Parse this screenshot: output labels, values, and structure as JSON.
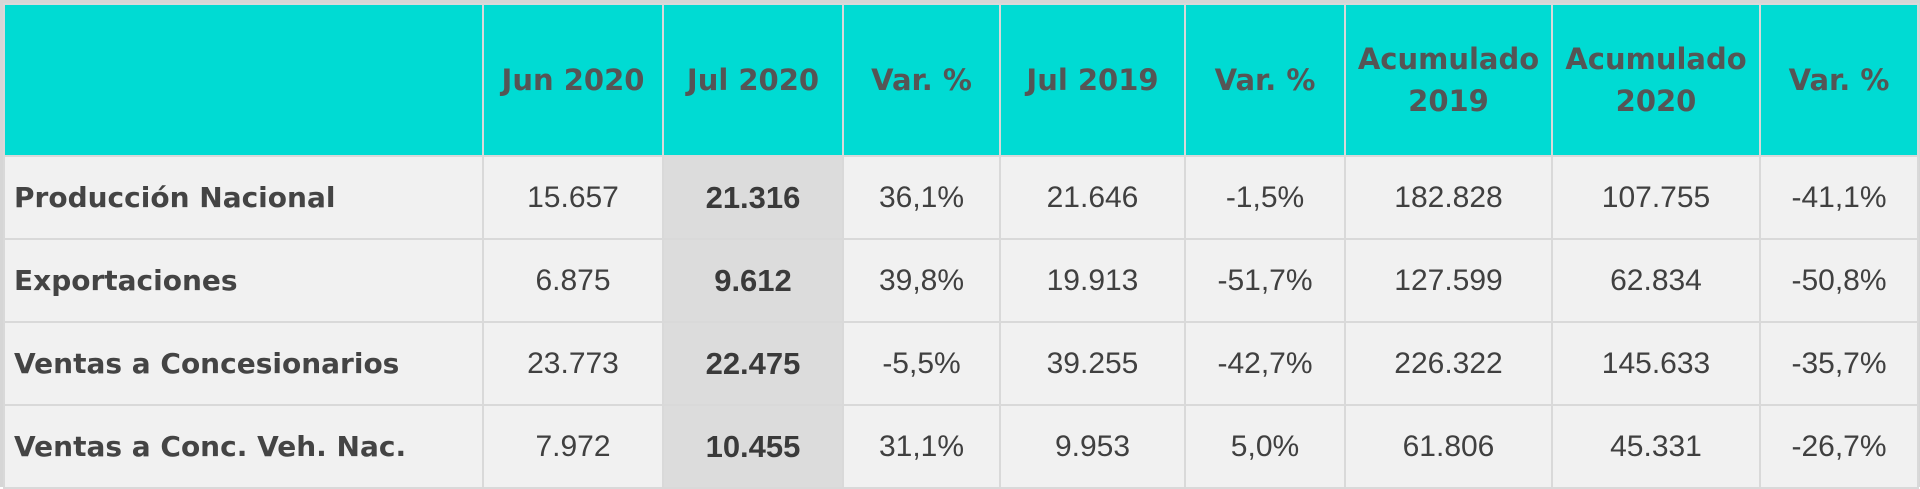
{
  "table": {
    "headers": [
      "",
      "Jun 2020",
      "Jul 2020",
      "Var. %",
      "Jul 2019",
      "Var. %",
      "Acumulado 2019",
      "Acumulado 2020",
      "Var. %"
    ],
    "rows": [
      {
        "label": "Producción Nacional",
        "values": [
          "15.657",
          "21.316",
          "36,1%",
          "21.646",
          "-1,5%",
          "182.828",
          "107.755",
          "-41,1%"
        ]
      },
      {
        "label": "Exportaciones",
        "values": [
          "6.875",
          "9.612",
          "39,8%",
          "19.913",
          "-51,7%",
          "127.599",
          "62.834",
          "-50,8%"
        ]
      },
      {
        "label": "Ventas a Concesionarios",
        "values": [
          "23.773",
          "22.475",
          "-5,5%",
          "39.255",
          "-42,7%",
          "226.322",
          "145.633",
          "-35,7%"
        ]
      },
      {
        "label": "Ventas a Conc. Veh. Nac.",
        "values": [
          "7.972",
          "10.455",
          "31,1%",
          "9.953",
          "5,0%",
          "61.806",
          "45.331",
          "-26,7%"
        ]
      }
    ]
  },
  "colors": {
    "header_bg": "#00dbd3",
    "header_text": "#555555",
    "row_bg": "#f1f1f1",
    "highlight_col_bg": "#dcdcdc"
  }
}
